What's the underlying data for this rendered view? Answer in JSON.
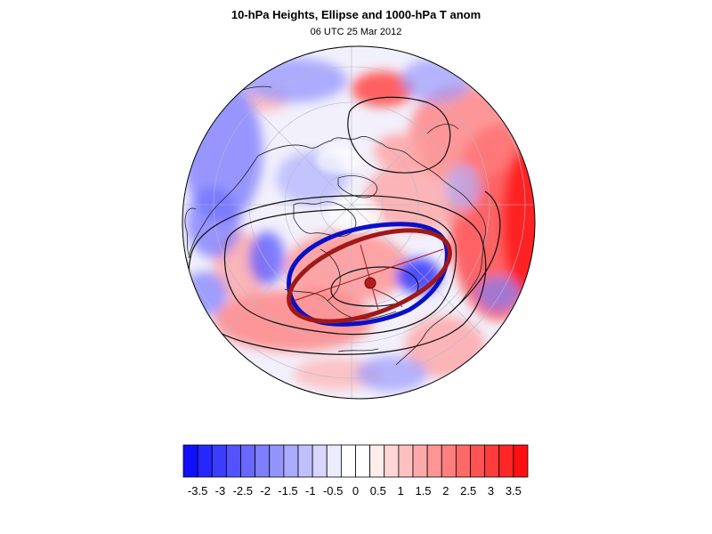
{
  "figure": {
    "title": "10-hPa Heights, Ellipse and 1000-hPa T anom",
    "subtitle": "06 UTC 25 Mar 2012"
  },
  "colorbar": {
    "labels": [
      "-3.5",
      "-3",
      "-2.5",
      "-2",
      "-1.5",
      "-1",
      "-0.5",
      "0",
      "0.5",
      "1",
      "1.5",
      "2",
      "2.5",
      "3",
      "3.5"
    ],
    "colors": [
      "#1010ff",
      "#2626ff",
      "#3c3cff",
      "#5252ff",
      "#6868ff",
      "#7e7eff",
      "#9494ff",
      "#aaaaff",
      "#c0c0ff",
      "#d6d6ff",
      "#ececff",
      "#ffffff",
      "#ffffff",
      "#ffecec",
      "#ffd6d6",
      "#ffc0c0",
      "#ffaaaa",
      "#ff9494",
      "#ff7e7e",
      "#ff6868",
      "#ff5252",
      "#ff3c3c",
      "#ff2626",
      "#ff1010"
    ]
  },
  "map": {
    "projection": "orthographic, north polar view",
    "ellipse_observed_color": "#0a10c8",
    "ellipse_fit_color": "#a01818",
    "center_marker_color": "#b02020"
  }
}
